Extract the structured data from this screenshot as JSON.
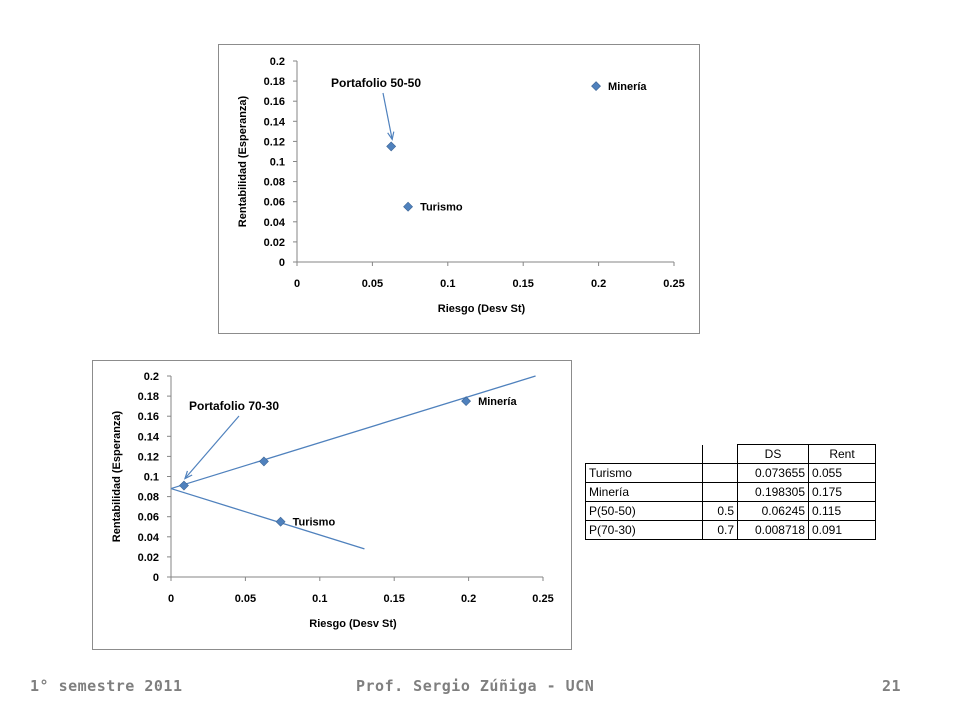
{
  "chart_data": [
    {
      "type": "scatter",
      "title": "",
      "xlabel": "Riesgo (Desv St)",
      "ylabel": "Rentabilidad (Esperanza)",
      "xlim": [
        0,
        0.25
      ],
      "ylim": [
        0,
        0.2
      ],
      "x_ticks": [
        "0",
        "0.05",
        "0.1",
        "0.15",
        "0.2",
        "0.25"
      ],
      "y_ticks": [
        "0",
        "0.02",
        "0.04",
        "0.06",
        "0.08",
        "0.1",
        "0.12",
        "0.14",
        "0.16",
        "0.18",
        "0.2"
      ],
      "grid": false,
      "marker_color": "#4f81bd",
      "points": [
        {
          "x": 0.073655,
          "y": 0.055,
          "label": "Turismo"
        },
        {
          "x": 0.198305,
          "y": 0.175,
          "label": "Minería"
        },
        {
          "x": 0.06245,
          "y": 0.115,
          "label": ""
        }
      ],
      "annotation": {
        "text": "Portafolio 50-50",
        "target_x": 0.06245,
        "target_y": 0.115
      }
    },
    {
      "type": "scatter",
      "title": "",
      "xlabel": "Riesgo (Desv St)",
      "ylabel": "Rentabilidad (Esperanza)",
      "xlim": [
        0,
        0.25
      ],
      "ylim": [
        0,
        0.2
      ],
      "x_ticks": [
        "0",
        "0.05",
        "0.1",
        "0.15",
        "0.2",
        "0.25"
      ],
      "y_ticks": [
        "0",
        "0.02",
        "0.04",
        "0.06",
        "0.08",
        "0.1",
        "0.12",
        "0.14",
        "0.16",
        "0.18",
        "0.2"
      ],
      "grid": false,
      "marker_color": "#4f81bd",
      "points": [
        {
          "x": 0.073655,
          "y": 0.055,
          "label": "Turismo"
        },
        {
          "x": 0.198305,
          "y": 0.175,
          "label": "Minería"
        },
        {
          "x": 0.06245,
          "y": 0.115,
          "label": ""
        },
        {
          "x": 0.008718,
          "y": 0.091,
          "label": ""
        }
      ],
      "lines": [
        {
          "x": [
            0,
            0.245
          ],
          "y": [
            0.088,
            0.2
          ]
        },
        {
          "x": [
            0,
            0.13
          ],
          "y": [
            0.088,
            0.028
          ]
        }
      ],
      "annotation": {
        "text": "Portafolio 70-30",
        "target_x": 0.008718,
        "target_y": 0.091
      }
    }
  ],
  "table": {
    "headers": [
      "",
      "",
      "DS",
      "Rent"
    ],
    "rows": [
      [
        "Turismo",
        "",
        "0.073655",
        "0.055"
      ],
      [
        "Minería",
        "",
        "0.198305",
        "0.175"
      ],
      [
        "P(50-50)",
        "0.5",
        "0.06245",
        "0.115"
      ],
      [
        "P(70-30)",
        "0.7",
        "0.008718",
        "0.091"
      ]
    ]
  },
  "footer": {
    "left": "1° semestre 2011",
    "center": "Prof. Sergio Zúñiga - UCN",
    "right": "21"
  }
}
